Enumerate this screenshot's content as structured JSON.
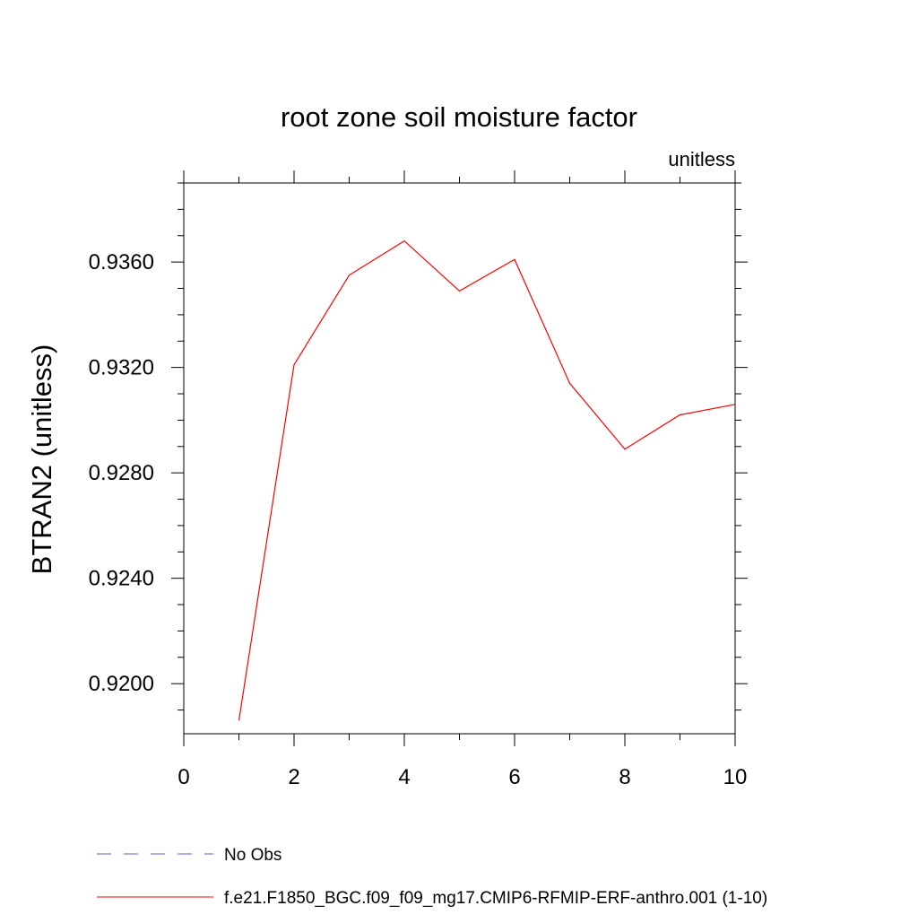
{
  "chart_data": {
    "type": "line",
    "title": "root zone soil moisture factor",
    "units_label": "unitless",
    "xlabel": "",
    "ylabel": "BTRAN2  (unitless)",
    "xlim": [
      0,
      10
    ],
    "ylim": [
      0.9181,
      0.939
    ],
    "x_ticks": [
      0,
      2,
      4,
      6,
      8,
      10
    ],
    "x_tick_labels": [
      "0",
      "2",
      "4",
      "6",
      "8",
      "10"
    ],
    "y_ticks": [
      0.92,
      0.924,
      0.928,
      0.932,
      0.936
    ],
    "y_tick_labels": [
      "0.9200",
      "0.9240",
      "0.9280",
      "0.9320",
      "0.9360"
    ],
    "series": [
      {
        "name": "f.e21.F1850_BGC.f09_f09_mg17.CMIP6-RFMIP-ERF-anthro.001 (1-10)",
        "color": "#ff0000",
        "dash": "solid",
        "x": [
          1,
          2,
          3,
          4,
          5,
          6,
          7,
          8,
          9,
          10
        ],
        "values": [
          0.9186,
          0.9321,
          0.9355,
          0.9368,
          0.9349,
          0.9361,
          0.9314,
          0.9289,
          0.9302,
          0.9306
        ]
      }
    ],
    "legend": {
      "position": "bottom",
      "entries": [
        {
          "label": "No Obs",
          "color": "#6a5acd",
          "dash": "dashed"
        },
        {
          "label": "f.e21.F1850_BGC.f09_f09_mg17.CMIP6-RFMIP-ERF-anthro.001 (1-10)",
          "color": "#ff0000",
          "dash": "solid"
        }
      ]
    },
    "grid": false
  }
}
